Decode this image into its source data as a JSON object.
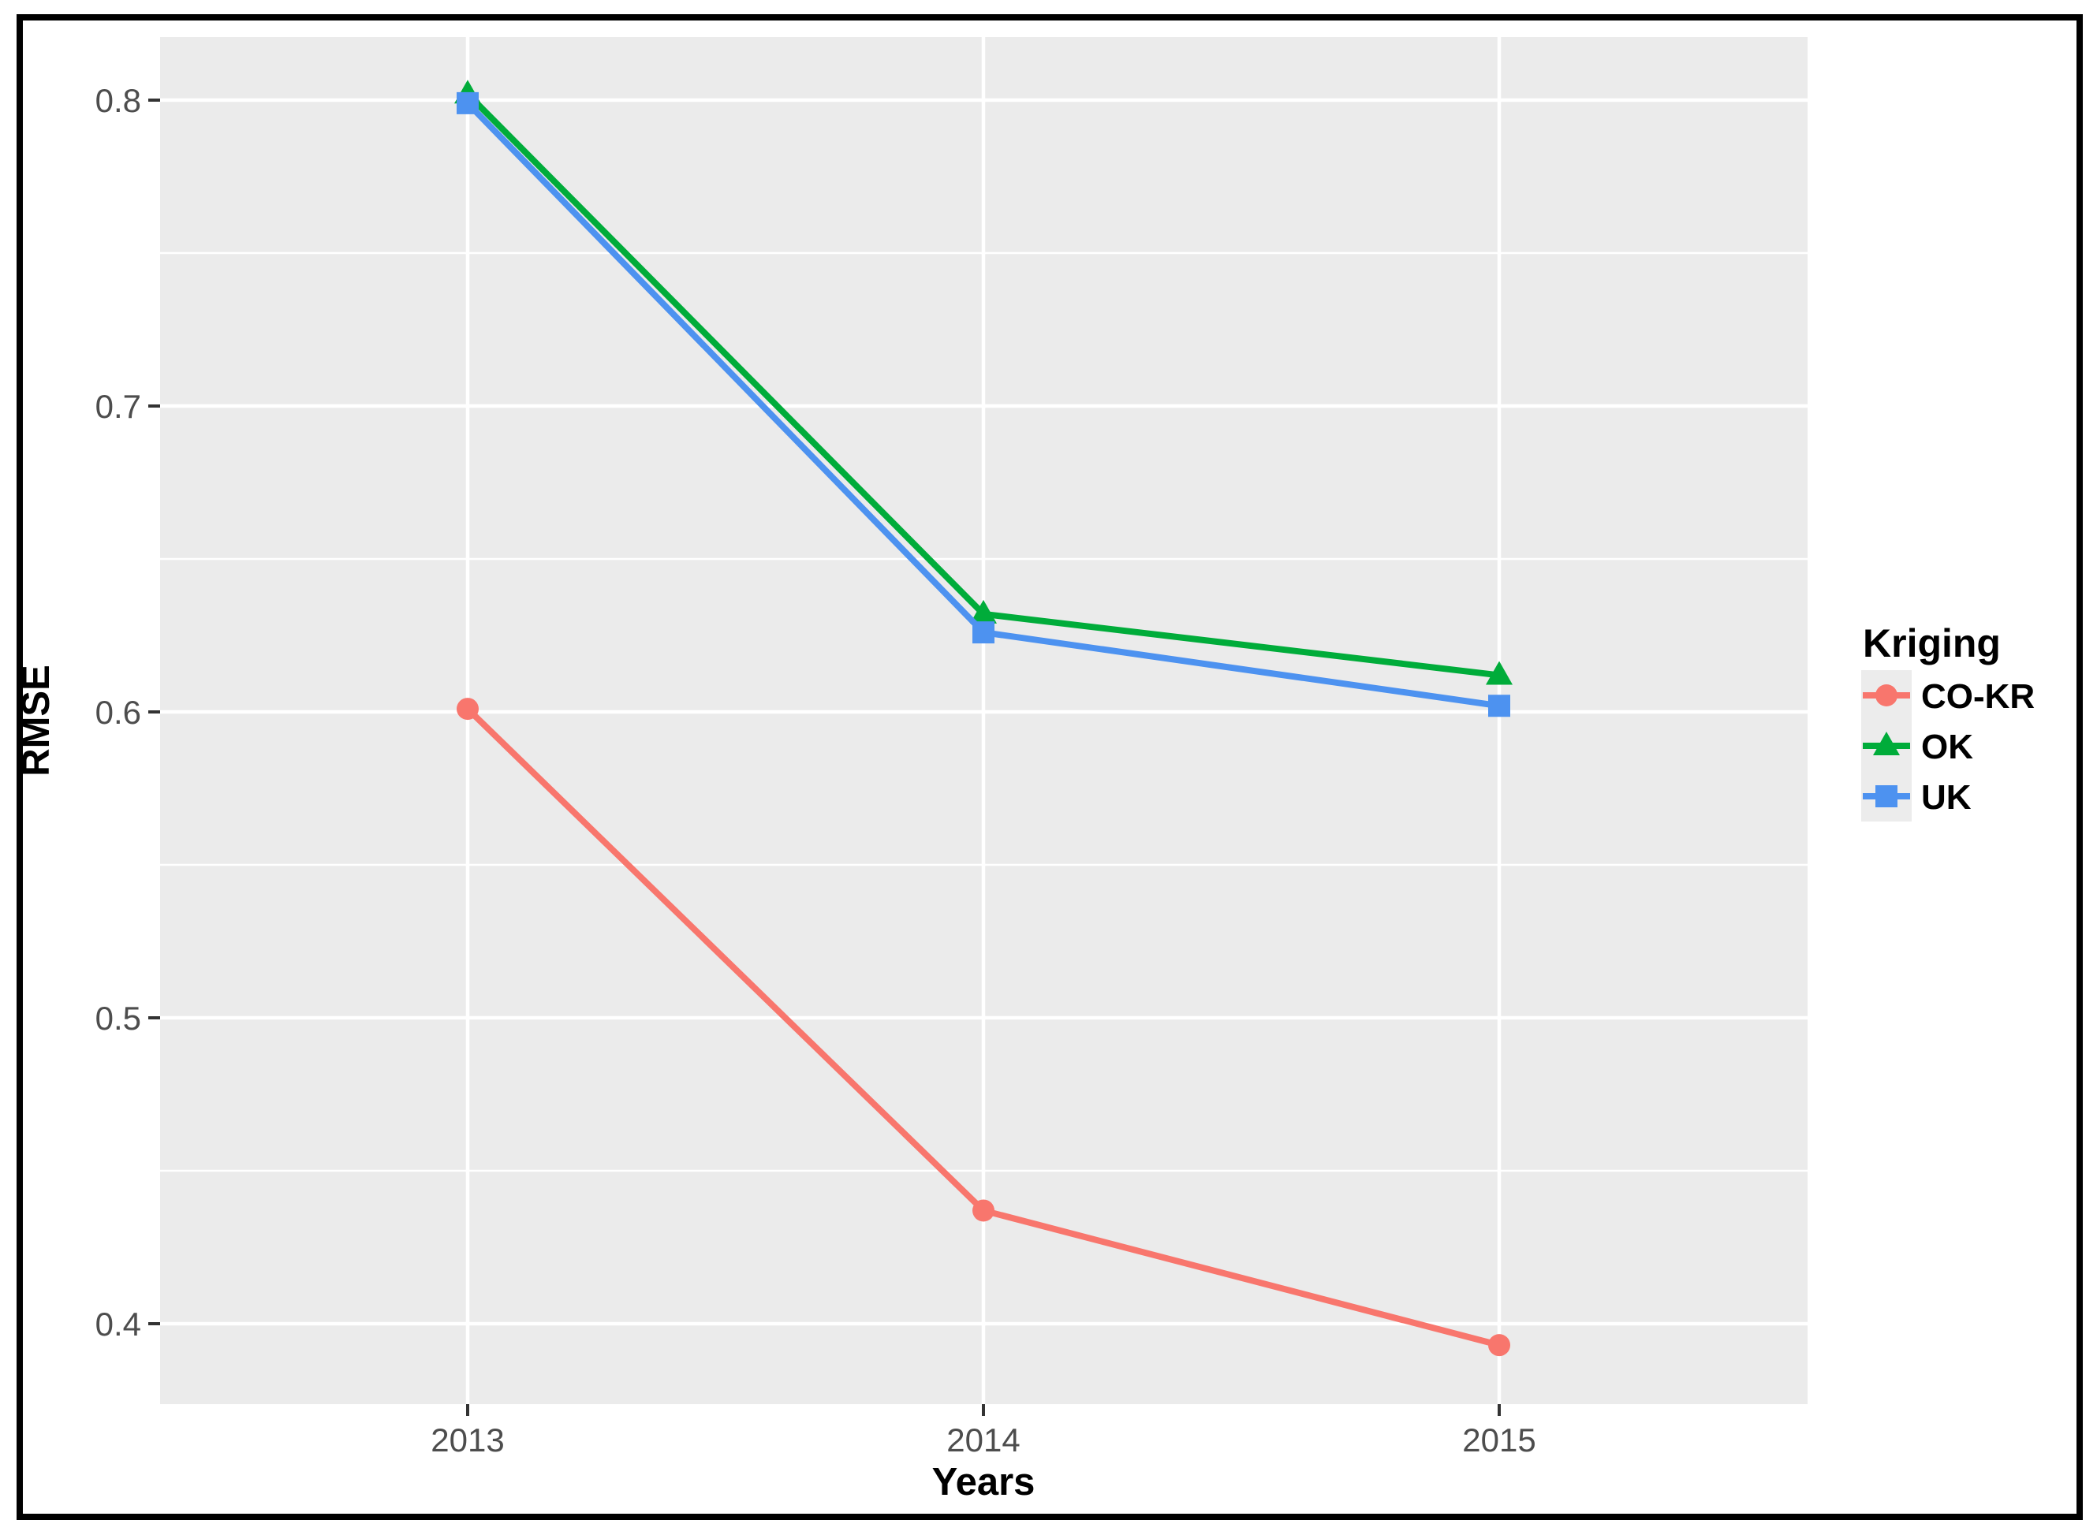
{
  "figure": {
    "frame_color": "#000000",
    "background": "#ffffff"
  },
  "panel": {
    "background": "#EBEBEB",
    "gridline_color": "#FFFFFF",
    "tick_color": "#333333",
    "tick_label_color": "#4d4d4d"
  },
  "legend": {
    "title": "Kriging",
    "position": "right",
    "key_background": "#ECECEC"
  },
  "chart_data": {
    "type": "line",
    "title": "",
    "xlabel": "Years",
    "ylabel": "RMSE",
    "x": [
      2013,
      2014,
      2015
    ],
    "x_tick_labels": [
      "2013",
      "2014",
      "2015"
    ],
    "y_ticks": [
      "0.4",
      "0.5",
      "0.6",
      "0.7",
      "0.8"
    ],
    "y_tick_values": [
      0.4,
      0.5,
      0.6,
      0.7,
      0.8
    ],
    "y_minor_tick_values": [
      0.45,
      0.55,
      0.65,
      0.75
    ],
    "ylim": [
      0.373,
      0.821
    ],
    "grid": "white major and minor horizontal gridlines, white major vertical gridlines, on grey panel",
    "legend_position": "right",
    "series": [
      {
        "name": "CO-KR",
        "marker": "circle",
        "color": "#F8766D",
        "values": [
          0.601,
          0.437,
          0.393
        ]
      },
      {
        "name": "OK",
        "marker": "triangle",
        "color": "#00AC3A",
        "values": [
          0.802,
          0.632,
          0.612
        ]
      },
      {
        "name": "UK",
        "marker": "square",
        "color": "#4D92F0",
        "values": [
          0.799,
          0.626,
          0.602
        ]
      }
    ]
  }
}
